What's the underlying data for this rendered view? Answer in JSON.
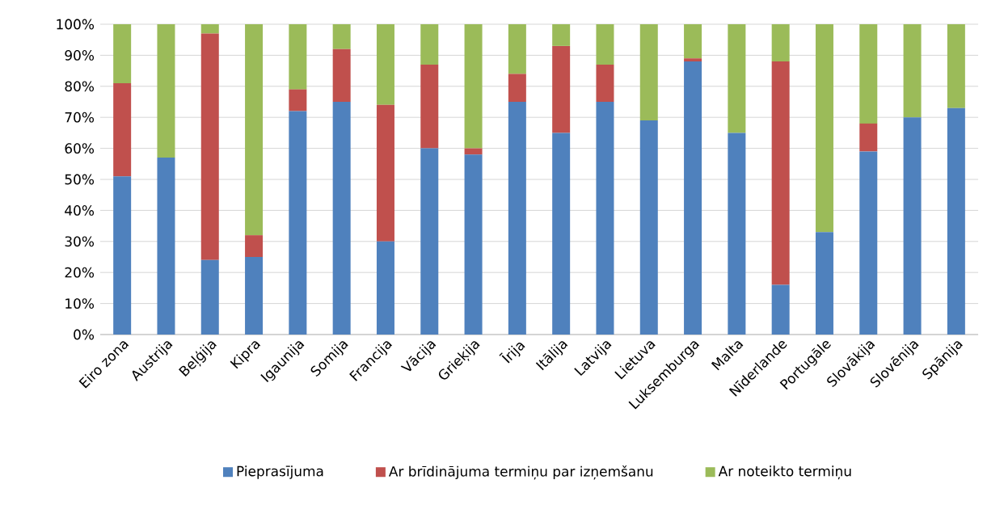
{
  "chart_data": {
    "type": "bar",
    "stacked": true,
    "legend": "bottom",
    "grid": "y",
    "categories": [
      "Eiro zona",
      "Austrija",
      "Beļģija",
      "Kipra",
      "Igaunija",
      "Somija",
      "Francija",
      "Vācija",
      "Grieķija",
      "Īrija",
      "Itālija",
      "Latvija",
      "Lietuva",
      "Luksemburga",
      "Malta",
      "Nīderlande",
      "Portugāle",
      "Slovākija",
      "Slovēnija",
      "Spānija"
    ],
    "ylim": [
      0,
      100
    ],
    "yticks": [
      {
        "value": 0,
        "label": "0%"
      },
      {
        "value": 10,
        "label": "10%"
      },
      {
        "value": 20,
        "label": "20%"
      },
      {
        "value": 30,
        "label": "30%"
      },
      {
        "value": 40,
        "label": "40%"
      },
      {
        "value": 50,
        "label": "50%"
      },
      {
        "value": 60,
        "label": "60%"
      },
      {
        "value": 70,
        "label": "70%"
      },
      {
        "value": 80,
        "label": "80%"
      },
      {
        "value": 90,
        "label": "90%"
      },
      {
        "value": 100,
        "label": "100%"
      }
    ],
    "series": [
      {
        "name": "Pieprasījuma",
        "color": "#4f81bd",
        "values": [
          51,
          57,
          24,
          25,
          72,
          75,
          30,
          60,
          58,
          75,
          65,
          75,
          69,
          88,
          65,
          16,
          33,
          59,
          70,
          73
        ]
      },
      {
        "name": "Ar brīdinājuma termiņu par izņemšanu",
        "color": "#c0504d",
        "values": [
          30,
          0,
          73,
          7,
          7,
          17,
          44,
          27,
          2,
          9,
          28,
          12,
          0,
          1,
          0,
          72,
          0,
          9,
          0,
          0
        ]
      },
      {
        "name": "Ar noteikto termiņu",
        "color": "#9bbb59",
        "values": [
          19,
          43,
          3,
          68,
          21,
          8,
          26,
          13,
          40,
          16,
          7,
          13,
          31,
          11,
          35,
          12,
          67,
          32,
          30,
          27
        ]
      }
    ]
  }
}
